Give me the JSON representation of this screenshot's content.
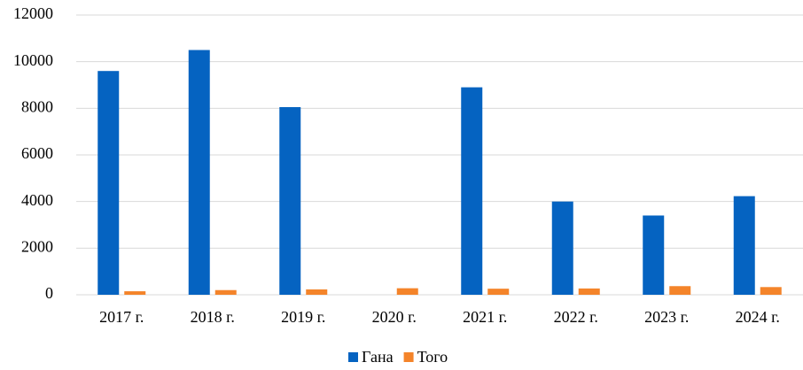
{
  "chart_data": {
    "type": "bar",
    "categories": [
      "2017 г.",
      "2018 г.",
      "2019 г.",
      "2020 г.",
      "2021 г.",
      "2022 г.",
      "2023 г.",
      "2024 г."
    ],
    "series": [
      {
        "name": "Гана",
        "color": "#0563c1",
        "values": [
          9600,
          10500,
          8050,
          null,
          8900,
          4000,
          3400,
          4230
        ]
      },
      {
        "name": "Того",
        "color": "#f4842a",
        "values": [
          150,
          200,
          230,
          280,
          260,
          270,
          370,
          330
        ]
      }
    ],
    "ylim": [
      0,
      12000
    ],
    "yticks": [
      0,
      2000,
      4000,
      6000,
      8000,
      10000,
      12000
    ],
    "grid": true,
    "legend": "bottom"
  }
}
